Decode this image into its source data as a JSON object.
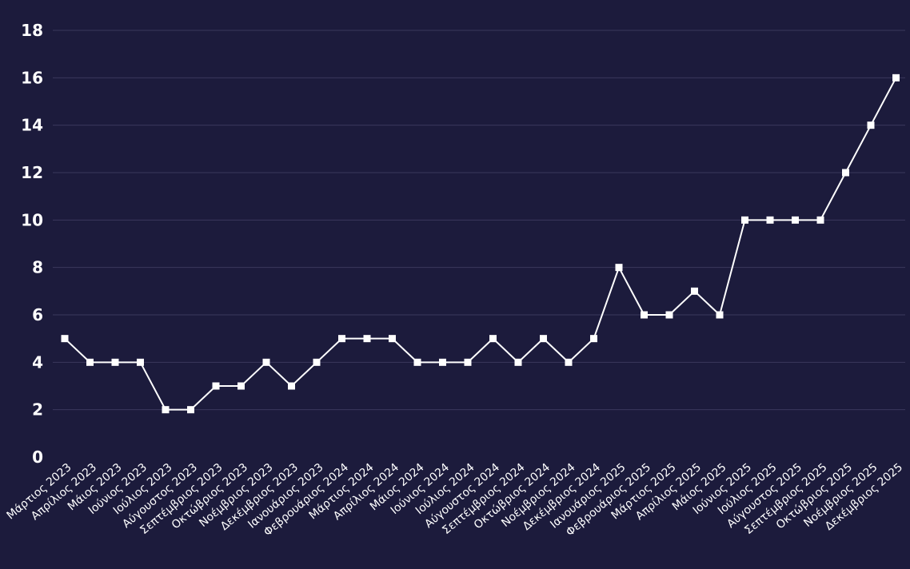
{
  "chart_data": {
    "type": "line",
    "categories": [
      "Μάρτιος 2023",
      "Απρίλιος 2023",
      "Μάιος 2023",
      "Ιούνιος 2023",
      "Ιούλιος 2023",
      "Αύγουστος 2023",
      "Σεπτέμβριος 2023",
      "Οκτώβριος 2023",
      "Νοέμβριος 2023",
      "Δεκέμβριος 2023",
      "Ιανουάριος 2023",
      "Φεβρουάριος 2024",
      "Μάρτιος 2024",
      "Απρίλιος 2024",
      "Μάιος 2024",
      "Ιούνιος 2024",
      "Ιούλιος 2024",
      "Αύγουστος 2024",
      "Σεπτέμβριος 2024",
      "Οκτώβριος 2024",
      "Νοέμβριος 2024",
      "Δεκέμβριος 2024",
      "Ιανουάριος 2025",
      "Φεβρουάριος 2025",
      "Μάρτιος 2025",
      "Απρίλιος 2025",
      "Μάιος 2025",
      "Ιούνιος 2025",
      "Ιούλιος 2025",
      "Αύγουστος 2025",
      "Σεπτέμβριος 2025",
      "Οκτώβριος 2025",
      "Νοέμβριος 2025",
      "Δεκέμβριος 2025"
    ],
    "series": [
      {
        "values": [
          5,
          4,
          4,
          4,
          2,
          2,
          3,
          3,
          4,
          3,
          4,
          5,
          5,
          5,
          4,
          4,
          4,
          5,
          4,
          5,
          4,
          5,
          8,
          6,
          6,
          7,
          6,
          10,
          10,
          10,
          10,
          12,
          14,
          16
        ]
      }
    ],
    "yticks": [
      "0",
      "2",
      "4",
      "6",
      "8",
      "10",
      "12",
      "14",
      "16",
      "18"
    ],
    "ylim": [
      0,
      18
    ],
    "grid": true,
    "legend": "none",
    "title": "",
    "xlabel": "",
    "ylabel": "",
    "colors": {
      "background": "#1c1b3c",
      "line": "#ffffff",
      "grid": "#3a395c",
      "text": "#ffffff"
    }
  }
}
